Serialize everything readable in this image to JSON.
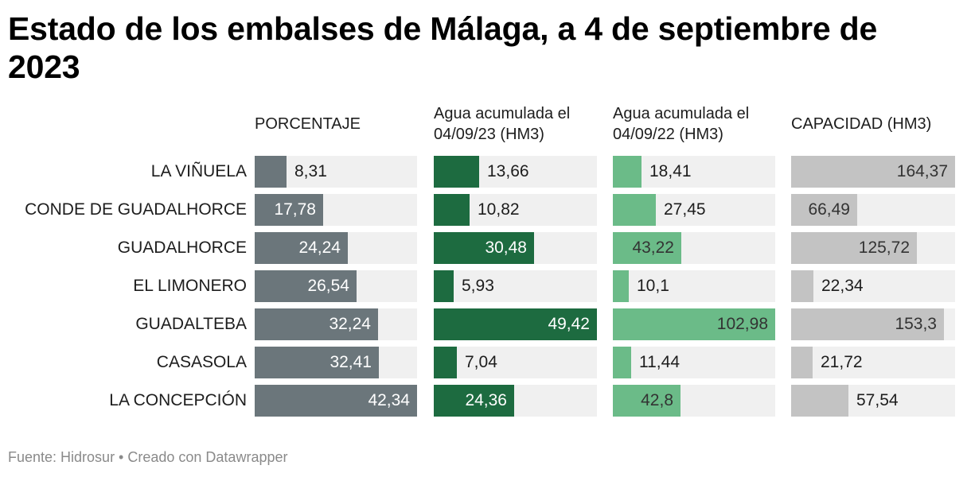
{
  "title": "Estado de los embalses de Málaga, a 4 de septiembre de 2023",
  "footer": "Fuente: Hidrosur • Creado con Datawrapper",
  "chart_data": {
    "type": "bar",
    "title": "Estado de los embalses de Málaga, a 4 de septiembre de 2023",
    "categories": [
      "LA VIÑUELA",
      "CONDE DE GUADALHORCE",
      "GUADALHORCE",
      "EL LIMONERO",
      "GUADALTEBA",
      "CASASOLA",
      "LA CONCEPCIÓN"
    ],
    "series": [
      {
        "name": "PORCENTAJE",
        "color": "#6b767b",
        "max": 42.34,
        "values": [
          8.31,
          17.78,
          24.24,
          26.54,
          32.24,
          32.41,
          42.34
        ],
        "labels": [
          "8,31",
          "17,78",
          "24,24",
          "26,54",
          "32,24",
          "32,41",
          "42,34"
        ]
      },
      {
        "name": "Agua acumulada el 04/09/23 (HM3)",
        "color": "#1d6b40",
        "max": 49.42,
        "values": [
          13.66,
          10.82,
          30.48,
          5.93,
          49.42,
          7.04,
          24.36
        ],
        "labels": [
          "13,66",
          "10,82",
          "30,48",
          "5,93",
          "49,42",
          "7,04",
          "24,36"
        ]
      },
      {
        "name": "Agua acumulada el 04/09/22 (HM3)",
        "color": "#6bbb88",
        "max": 102.98,
        "values": [
          18.41,
          27.45,
          43.22,
          10.1,
          102.98,
          11.44,
          42.8
        ],
        "labels": [
          "18,41",
          "27,45",
          "43,22",
          "10,1",
          "102,98",
          "11,44",
          "42,8"
        ]
      },
      {
        "name": "CAPACIDAD (HM3)",
        "color": "#c3c3c3",
        "max": 164.37,
        "values": [
          164.37,
          66.49,
          125.72,
          22.34,
          153.3,
          21.72,
          57.54
        ],
        "labels": [
          "164,37",
          "66,49",
          "125,72",
          "22,34",
          "153,3",
          "21,72",
          "57,54"
        ]
      }
    ]
  }
}
